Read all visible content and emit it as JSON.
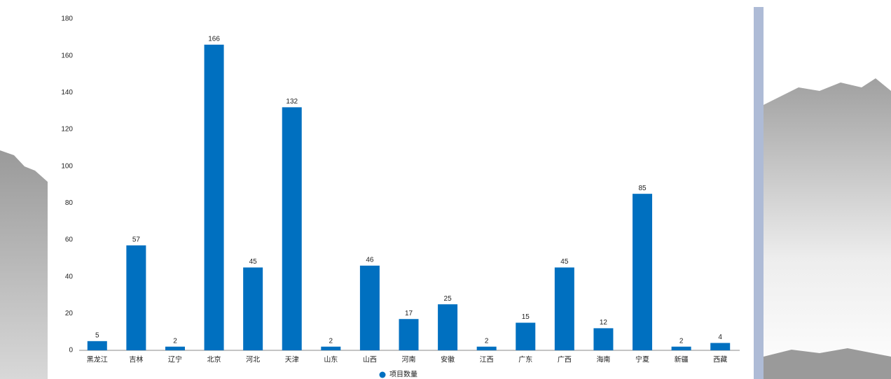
{
  "chart_data": {
    "type": "bar",
    "categories": [
      "黑龙江",
      "吉林",
      "辽宁",
      "北京",
      "河北",
      "天津",
      "山东",
      "山西",
      "河南",
      "安徽",
      "江西",
      "广东",
      "广西",
      "海南",
      "宁夏",
      "新疆",
      "西藏"
    ],
    "series": [
      {
        "name": "项目数量",
        "color": "#0070c0",
        "values": [
          5,
          57,
          2,
          166,
          45,
          132,
          2,
          46,
          17,
          25,
          2,
          15,
          45,
          12,
          85,
          2,
          4
        ]
      }
    ],
    "ylim": [
      0,
      180
    ],
    "yticks": [
      0,
      20,
      40,
      60,
      80,
      100,
      120,
      140,
      160,
      180
    ],
    "grid": false,
    "legend": "bottom"
  }
}
